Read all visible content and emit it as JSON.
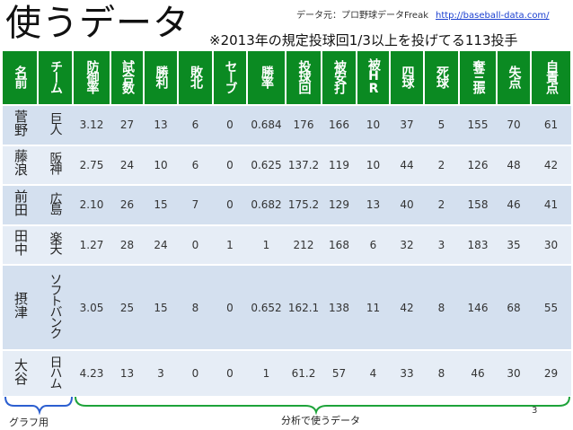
{
  "title": "使うデータ",
  "source": {
    "label": "データ元：プロ野球データFreak",
    "url": "http://baseball-data.com/"
  },
  "subtitle": "※2013年の規定投球回1/3以上を投げてる113投手",
  "columns": [
    "名前",
    "チーム",
    "防御率",
    "試合数",
    "勝利",
    "敗北",
    "セーブ",
    "勝率",
    "投球回",
    "被安打",
    "被HR",
    "四球",
    "死球",
    "奪三振",
    "失点",
    "自責点"
  ],
  "rows": [
    [
      "菅野",
      "巨人",
      "3.12",
      "27",
      "13",
      "6",
      "0",
      "0.684",
      "176",
      "166",
      "10",
      "37",
      "5",
      "155",
      "70",
      "61"
    ],
    [
      "藤浪",
      "阪神",
      "2.75",
      "24",
      "10",
      "6",
      "0",
      "0.625",
      "137.2",
      "119",
      "10",
      "44",
      "2",
      "126",
      "48",
      "42"
    ],
    [
      "前田",
      "広島",
      "2.10",
      "26",
      "15",
      "7",
      "0",
      "0.682",
      "175.2",
      "129",
      "13",
      "40",
      "2",
      "158",
      "46",
      "41"
    ],
    [
      "田中",
      "楽天",
      "1.27",
      "28",
      "24",
      "0",
      "1",
      "1",
      "212",
      "168",
      "6",
      "32",
      "3",
      "183",
      "35",
      "30"
    ],
    [
      "摂津",
      "ソフトバンク",
      "3.05",
      "25",
      "15",
      "8",
      "0",
      "0.652",
      "162.1",
      "138",
      "11",
      "42",
      "8",
      "146",
      "68",
      "55"
    ],
    [
      "大谷",
      "日ハム",
      "4.23",
      "13",
      "3",
      "0",
      "0",
      "1",
      "61.2",
      "57",
      "4",
      "33",
      "8",
      "46",
      "30",
      "29"
    ]
  ],
  "labels": {
    "graph_use": "グラフ用",
    "analysis_use": "分析で使うデータ"
  },
  "page_number": "3",
  "colors": {
    "header_bg": "#0b8a22",
    "row_bg": "#d4e0ef",
    "brace": "#2c5fd0",
    "brace_green": "#1ea33a"
  }
}
